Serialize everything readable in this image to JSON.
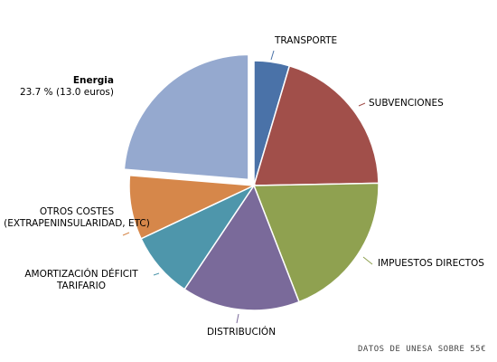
{
  "chart_data": {
    "type": "pie",
    "categories": [
      "TRANSPORTE",
      "SUBVENCIONES",
      "IMPUESTOS DIRECTOS",
      "DISTRIBUCIÓN",
      "AMORTIZACIÓN DÉFICIT TARIFARIO",
      "OTROS COSTES (EXTRAPENINSULARIDAD, ETC)",
      "Energia"
    ],
    "values": [
      4.6,
      20.1,
      19.4,
      15.3,
      8.6,
      8.3,
      23.7
    ],
    "value_labels": [
      null,
      null,
      null,
      null,
      null,
      null,
      "23.7 % (13.0 euros)"
    ],
    "colors": [
      "#4a72a8",
      "#a14f4a",
      "#8fa150",
      "#7a6a9a",
      "#4e96ab",
      "#d6874a",
      "#95a9cf"
    ],
    "exploded": [
      6
    ],
    "note": "DATOS DE UNESA SOBRE 55€"
  }
}
